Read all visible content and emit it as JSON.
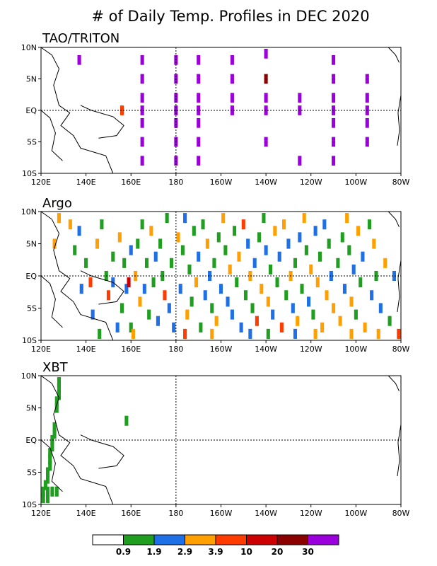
{
  "title": "# of Daily Temp. Profiles in DEC 2020",
  "chart_data": [
    {
      "type": "heatmap",
      "title": "TAO/TRITON",
      "x_ticks": [
        "120E",
        "140E",
        "160E",
        "180",
        "160W",
        "140W",
        "120W",
        "100W",
        "80W"
      ],
      "y_ticks": [
        "10N",
        "5N",
        "EQ",
        "5S",
        "10S"
      ],
      "xlim_deg_east": [
        120,
        280
      ],
      "ylim_deg_north": [
        -10,
        10
      ],
      "cells": [
        {
          "lon": 137,
          "lat": 8,
          "c": 7
        },
        {
          "lon": 165,
          "lat": 8,
          "c": 7
        },
        {
          "lon": 180,
          "lat": 8,
          "c": 7
        },
        {
          "lon": 190,
          "lat": 8,
          "c": 7
        },
        {
          "lon": 205,
          "lat": 8,
          "c": 7
        },
        {
          "lon": 220,
          "lat": 9,
          "c": 7
        },
        {
          "lon": 250,
          "lat": 8,
          "c": 7
        },
        {
          "lon": 165,
          "lat": 5,
          "c": 7
        },
        {
          "lon": 180,
          "lat": 5,
          "c": 7
        },
        {
          "lon": 190,
          "lat": 5,
          "c": 7
        },
        {
          "lon": 205,
          "lat": 5,
          "c": 7
        },
        {
          "lon": 220,
          "lat": 5,
          "c": 6
        },
        {
          "lon": 250,
          "lat": 5,
          "c": 7
        },
        {
          "lon": 265,
          "lat": 5,
          "c": 7
        },
        {
          "lon": 165,
          "lat": 2,
          "c": 7
        },
        {
          "lon": 180,
          "lat": 2,
          "c": 7
        },
        {
          "lon": 190,
          "lat": 2,
          "c": 7
        },
        {
          "lon": 205,
          "lat": 2,
          "c": 7
        },
        {
          "lon": 220,
          "lat": 2,
          "c": 7
        },
        {
          "lon": 235,
          "lat": 2,
          "c": 7
        },
        {
          "lon": 250,
          "lat": 2,
          "c": 7
        },
        {
          "lon": 265,
          "lat": 2,
          "c": 7
        },
        {
          "lon": 156,
          "lat": 0,
          "c": 4
        },
        {
          "lon": 165,
          "lat": 0,
          "c": 7
        },
        {
          "lon": 180,
          "lat": 0,
          "c": 7
        },
        {
          "lon": 190,
          "lat": 0,
          "c": 7
        },
        {
          "lon": 205,
          "lat": 0,
          "c": 7
        },
        {
          "lon": 220,
          "lat": 0,
          "c": 7
        },
        {
          "lon": 235,
          "lat": 0,
          "c": 7
        },
        {
          "lon": 250,
          "lat": 0,
          "c": 7
        },
        {
          "lon": 265,
          "lat": 0,
          "c": 7
        },
        {
          "lon": 165,
          "lat": -2,
          "c": 7
        },
        {
          "lon": 180,
          "lat": -2,
          "c": 7
        },
        {
          "lon": 190,
          "lat": -2,
          "c": 7
        },
        {
          "lon": 250,
          "lat": -2,
          "c": 7
        },
        {
          "lon": 265,
          "lat": -2,
          "c": 7
        },
        {
          "lon": 165,
          "lat": -5,
          "c": 7
        },
        {
          "lon": 180,
          "lat": -5,
          "c": 7
        },
        {
          "lon": 190,
          "lat": -5,
          "c": 7
        },
        {
          "lon": 220,
          "lat": -5,
          "c": 7
        },
        {
          "lon": 250,
          "lat": -5,
          "c": 7
        },
        {
          "lon": 265,
          "lat": -5,
          "c": 7
        },
        {
          "lon": 165,
          "lat": -8,
          "c": 7
        },
        {
          "lon": 180,
          "lat": -8,
          "c": 7
        },
        {
          "lon": 190,
          "lat": -8,
          "c": 7
        },
        {
          "lon": 235,
          "lat": -8,
          "c": 7
        },
        {
          "lon": 250,
          "lat": -8,
          "c": 7
        }
      ]
    },
    {
      "type": "heatmap",
      "title": "Argo",
      "x_ticks": [
        "120E",
        "140E",
        "160E",
        "180",
        "160W",
        "140W",
        "120W",
        "100W",
        "80W"
      ],
      "y_ticks": [
        "10N",
        "5N",
        "EQ",
        "5S",
        "10S"
      ],
      "xlim_deg_east": [
        120,
        280
      ],
      "ylim_deg_north": [
        -10,
        10
      ],
      "cells": [
        {
          "lon": 126,
          "lat": 5,
          "c": 3
        },
        {
          "lon": 128,
          "lat": 9,
          "c": 3
        },
        {
          "lon": 133,
          "lat": 8,
          "c": 3
        },
        {
          "lon": 135,
          "lat": 4,
          "c": 1
        },
        {
          "lon": 137,
          "lat": 7,
          "c": 2
        },
        {
          "lon": 140,
          "lat": 2,
          "c": 1
        },
        {
          "lon": 142,
          "lat": -1,
          "c": 4
        },
        {
          "lon": 145,
          "lat": 5,
          "c": 3
        },
        {
          "lon": 147,
          "lat": 8,
          "c": 1
        },
        {
          "lon": 149,
          "lat": 0,
          "c": 1
        },
        {
          "lon": 150,
          "lat": -3,
          "c": 4
        },
        {
          "lon": 152,
          "lat": -1,
          "c": 2
        },
        {
          "lon": 152,
          "lat": 3,
          "c": 1
        },
        {
          "lon": 155,
          "lat": 6,
          "c": 3
        },
        {
          "lon": 156,
          "lat": -5,
          "c": 1
        },
        {
          "lon": 157,
          "lat": 2,
          "c": 1
        },
        {
          "lon": 158,
          "lat": -2,
          "c": 2
        },
        {
          "lon": 160,
          "lat": 4,
          "c": 2
        },
        {
          "lon": 160,
          "lat": -8,
          "c": 1
        },
        {
          "lon": 162,
          "lat": 0,
          "c": 3
        },
        {
          "lon": 163,
          "lat": 5,
          "c": 1
        },
        {
          "lon": 164,
          "lat": -4,
          "c": 3
        },
        {
          "lon": 165,
          "lat": 8,
          "c": 1
        },
        {
          "lon": 166,
          "lat": -2,
          "c": 2
        },
        {
          "lon": 167,
          "lat": 2,
          "c": 1
        },
        {
          "lon": 168,
          "lat": -6,
          "c": 1
        },
        {
          "lon": 169,
          "lat": 7,
          "c": 3
        },
        {
          "lon": 170,
          "lat": -1,
          "c": 1
        },
        {
          "lon": 171,
          "lat": 3,
          "c": 2
        },
        {
          "lon": 172,
          "lat": -7,
          "c": 2
        },
        {
          "lon": 173,
          "lat": 5,
          "c": 1
        },
        {
          "lon": 174,
          "lat": 0,
          "c": 1
        },
        {
          "lon": 175,
          "lat": -3,
          "c": 4
        },
        {
          "lon": 176,
          "lat": 9,
          "c": 1
        },
        {
          "lon": 177,
          "lat": -5,
          "c": 2
        },
        {
          "lon": 178,
          "lat": 2,
          "c": 1
        },
        {
          "lon": 179,
          "lat": -8,
          "c": 2
        },
        {
          "lon": 181,
          "lat": 6,
          "c": 3
        },
        {
          "lon": 182,
          "lat": -2,
          "c": 2
        },
        {
          "lon": 183,
          "lat": 4,
          "c": 1
        },
        {
          "lon": 184,
          "lat": 9,
          "c": 2
        },
        {
          "lon": 185,
          "lat": -6,
          "c": 3
        },
        {
          "lon": 186,
          "lat": 1,
          "c": 1
        },
        {
          "lon": 187,
          "lat": -4,
          "c": 1
        },
        {
          "lon": 188,
          "lat": 7,
          "c": 1
        },
        {
          "lon": 189,
          "lat": -1,
          "c": 3
        },
        {
          "lon": 190,
          "lat": 3,
          "c": 2
        },
        {
          "lon": 191,
          "lat": -8,
          "c": 1
        },
        {
          "lon": 192,
          "lat": 8,
          "c": 1
        },
        {
          "lon": 193,
          "lat": -3,
          "c": 2
        },
        {
          "lon": 194,
          "lat": 5,
          "c": 3
        },
        {
          "lon": 195,
          "lat": 0,
          "c": 2
        },
        {
          "lon": 196,
          "lat": -5,
          "c": 1
        },
        {
          "lon": 197,
          "lat": 2,
          "c": 1
        },
        {
          "lon": 198,
          "lat": -7,
          "c": 3
        },
        {
          "lon": 199,
          "lat": 6,
          "c": 1
        },
        {
          "lon": 200,
          "lat": -2,
          "c": 2
        },
        {
          "lon": 201,
          "lat": 9,
          "c": 3
        },
        {
          "lon": 202,
          "lat": 4,
          "c": 1
        },
        {
          "lon": 203,
          "lat": -4,
          "c": 2
        },
        {
          "lon": 204,
          "lat": 1,
          "c": 3
        },
        {
          "lon": 205,
          "lat": -6,
          "c": 2
        },
        {
          "lon": 206,
          "lat": 7,
          "c": 1
        },
        {
          "lon": 207,
          "lat": -1,
          "c": 1
        },
        {
          "lon": 208,
          "lat": 3,
          "c": 3
        },
        {
          "lon": 209,
          "lat": -8,
          "c": 2
        },
        {
          "lon": 210,
          "lat": 8,
          "c": 4
        },
        {
          "lon": 211,
          "lat": -3,
          "c": 1
        },
        {
          "lon": 212,
          "lat": 5,
          "c": 2
        },
        {
          "lon": 213,
          "lat": 0,
          "c": 3
        },
        {
          "lon": 214,
          "lat": -5,
          "c": 1
        },
        {
          "lon": 215,
          "lat": 2,
          "c": 2
        },
        {
          "lon": 216,
          "lat": -7,
          "c": 4
        },
        {
          "lon": 217,
          "lat": 6,
          "c": 1
        },
        {
          "lon": 218,
          "lat": -2,
          "c": 3
        },
        {
          "lon": 219,
          "lat": 9,
          "c": 1
        },
        {
          "lon": 220,
          "lat": 4,
          "c": 2
        },
        {
          "lon": 221,
          "lat": -4,
          "c": 3
        },
        {
          "lon": 222,
          "lat": 1,
          "c": 1
        },
        {
          "lon": 223,
          "lat": -6,
          "c": 2
        },
        {
          "lon": 224,
          "lat": 7,
          "c": 3
        },
        {
          "lon": 225,
          "lat": -1,
          "c": 1
        },
        {
          "lon": 226,
          "lat": 3,
          "c": 2
        },
        {
          "lon": 227,
          "lat": -8,
          "c": 4
        },
        {
          "lon": 228,
          "lat": 8,
          "c": 3
        },
        {
          "lon": 229,
          "lat": -3,
          "c": 1
        },
        {
          "lon": 230,
          "lat": 5,
          "c": 2
        },
        {
          "lon": 231,
          "lat": 0,
          "c": 3
        },
        {
          "lon": 232,
          "lat": -5,
          "c": 2
        },
        {
          "lon": 233,
          "lat": 2,
          "c": 1
        },
        {
          "lon": 234,
          "lat": -7,
          "c": 3
        },
        {
          "lon": 235,
          "lat": 6,
          "c": 2
        },
        {
          "lon": 236,
          "lat": -2,
          "c": 1
        },
        {
          "lon": 237,
          "lat": 9,
          "c": 3
        },
        {
          "lon": 238,
          "lat": 4,
          "c": 1
        },
        {
          "lon": 239,
          "lat": -4,
          "c": 2
        },
        {
          "lon": 240,
          "lat": 1,
          "c": 3
        },
        {
          "lon": 241,
          "lat": -6,
          "c": 1
        },
        {
          "lon": 242,
          "lat": 7,
          "c": 2
        },
        {
          "lon": 243,
          "lat": -1,
          "c": 3
        },
        {
          "lon": 244,
          "lat": 3,
          "c": 1
        },
        {
          "lon": 245,
          "lat": -8,
          "c": 3
        },
        {
          "lon": 246,
          "lat": 8,
          "c": 2
        },
        {
          "lon": 247,
          "lat": -3,
          "c": 3
        },
        {
          "lon": 248,
          "lat": 5,
          "c": 1
        },
        {
          "lon": 249,
          "lat": 0,
          "c": 2
        },
        {
          "lon": 250,
          "lat": -5,
          "c": 3
        },
        {
          "lon": 252,
          "lat": 2,
          "c": 1
        },
        {
          "lon": 253,
          "lat": -7,
          "c": 3
        },
        {
          "lon": 254,
          "lat": 6,
          "c": 1
        },
        {
          "lon": 255,
          "lat": -2,
          "c": 2
        },
        {
          "lon": 256,
          "lat": 9,
          "c": 3
        },
        {
          "lon": 257,
          "lat": 4,
          "c": 1
        },
        {
          "lon": 258,
          "lat": -4,
          "c": 3
        },
        {
          "lon": 259,
          "lat": 1,
          "c": 2
        },
        {
          "lon": 260,
          "lat": -6,
          "c": 1
        },
        {
          "lon": 261,
          "lat": 7,
          "c": 3
        },
        {
          "lon": 262,
          "lat": -1,
          "c": 1
        },
        {
          "lon": 263,
          "lat": 3,
          "c": 2
        },
        {
          "lon": 264,
          "lat": -8,
          "c": 3
        },
        {
          "lon": 266,
          "lat": 8,
          "c": 1
        },
        {
          "lon": 267,
          "lat": -3,
          "c": 2
        },
        {
          "lon": 268,
          "lat": 5,
          "c": 3
        },
        {
          "lon": 269,
          "lat": 0,
          "c": 1
        },
        {
          "lon": 271,
          "lat": -5,
          "c": 2
        },
        {
          "lon": 273,
          "lat": 2,
          "c": 3
        },
        {
          "lon": 275,
          "lat": -7,
          "c": 1
        },
        {
          "lon": 277,
          "lat": 0,
          "c": 2
        },
        {
          "lon": 279,
          "lat": -9,
          "c": 4
        },
        {
          "lon": 138,
          "lat": -2,
          "c": 2
        },
        {
          "lon": 143,
          "lat": -6,
          "c": 2
        },
        {
          "lon": 146,
          "lat": -9,
          "c": 1
        },
        {
          "lon": 154,
          "lat": -8,
          "c": 2
        },
        {
          "lon": 159,
          "lat": -1,
          "c": 5
        },
        {
          "lon": 161,
          "lat": -9,
          "c": 3
        },
        {
          "lon": 184,
          "lat": -9,
          "c": 4
        },
        {
          "lon": 196,
          "lat": -9,
          "c": 3
        },
        {
          "lon": 213,
          "lat": -9,
          "c": 2
        },
        {
          "lon": 221,
          "lat": -9,
          "c": 1
        },
        {
          "lon": 233,
          "lat": -9,
          "c": 2
        },
        {
          "lon": 242,
          "lat": -9,
          "c": 3
        },
        {
          "lon": 258,
          "lat": -9,
          "c": 3
        },
        {
          "lon": 270,
          "lat": -9,
          "c": 3
        }
      ]
    },
    {
      "type": "heatmap",
      "title": "XBT",
      "x_ticks": [
        "120E",
        "140E",
        "160E",
        "180",
        "160W",
        "140W",
        "120W",
        "100W",
        "80W"
      ],
      "y_ticks": [
        "10N",
        "5N",
        "EQ",
        "5S",
        "10S"
      ],
      "xlim_deg_east": [
        120,
        280
      ],
      "ylim_deg_north": [
        -10,
        10
      ],
      "cells": [
        {
          "lon": 128,
          "lat": 9,
          "c": 1
        },
        {
          "lon": 128,
          "lat": 8,
          "c": 1
        },
        {
          "lon": 128,
          "lat": 7,
          "c": 1
        },
        {
          "lon": 127,
          "lat": 6,
          "c": 1
        },
        {
          "lon": 127,
          "lat": 5,
          "c": 1
        },
        {
          "lon": 126,
          "lat": 2,
          "c": 1
        },
        {
          "lon": 126,
          "lat": 1,
          "c": 1
        },
        {
          "lon": 125,
          "lat": 0,
          "c": 1
        },
        {
          "lon": 125,
          "lat": -1,
          "c": 1
        },
        {
          "lon": 124,
          "lat": -2,
          "c": 1
        },
        {
          "lon": 124,
          "lat": -3,
          "c": 1
        },
        {
          "lon": 124,
          "lat": -4,
          "c": 1
        },
        {
          "lon": 123,
          "lat": -5,
          "c": 1
        },
        {
          "lon": 123,
          "lat": -6,
          "c": 1
        },
        {
          "lon": 122,
          "lat": -7,
          "c": 1
        },
        {
          "lon": 121,
          "lat": -8,
          "c": 1
        },
        {
          "lon": 123,
          "lat": -8,
          "c": 1
        },
        {
          "lon": 125,
          "lat": -8,
          "c": 1
        },
        {
          "lon": 127,
          "lat": -8,
          "c": 1
        },
        {
          "lon": 121,
          "lat": -9,
          "c": 1
        },
        {
          "lon": 123,
          "lat": -9,
          "c": 1
        },
        {
          "lon": 158,
          "lat": 3,
          "c": 1
        }
      ]
    }
  ],
  "colorbar": {
    "colors": [
      "#ffffff",
      "#1f9e1f",
      "#1f6fe6",
      "#ffa000",
      "#ff3c00",
      "#cc0000",
      "#8b0000",
      "#9b00dc"
    ],
    "labels": [
      "0.9",
      "1.9",
      "2.9",
      "3.9",
      "10",
      "20",
      "30"
    ]
  }
}
